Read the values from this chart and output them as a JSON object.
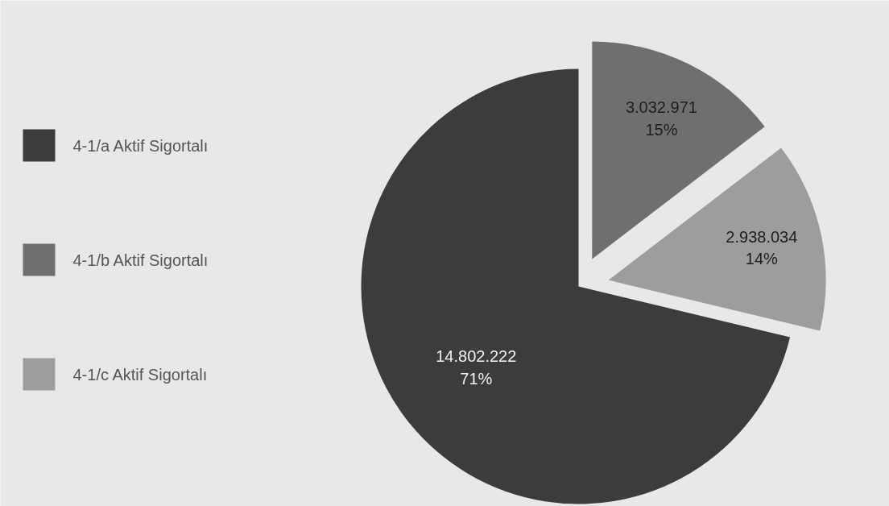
{
  "chart_data": {
    "type": "pie",
    "categories": [
      "4-1/a Aktif Sigortalı",
      "4-1/b Aktif Sigortalı",
      "4-1/c Aktif Sigortalı"
    ],
    "values": [
      14802222,
      3032971,
      2938034
    ],
    "colors": [
      "#3c3c3b",
      "#706f6f",
      "#9d9d9c"
    ],
    "value_labels": [
      "14.802.222\n71%",
      "3.032.971\n15%",
      "2.938.034\n14%"
    ],
    "legend": "left"
  }
}
